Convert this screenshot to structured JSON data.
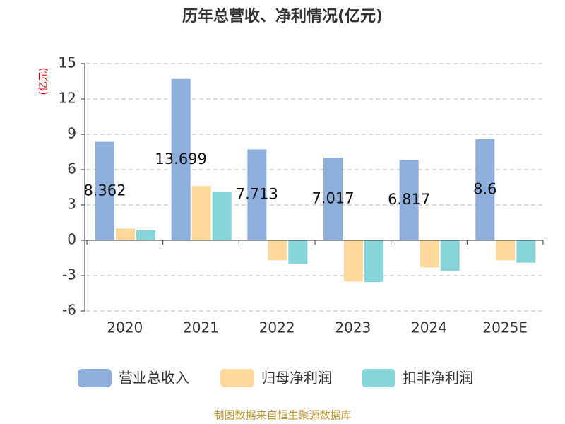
{
  "chart_data": {
    "type": "bar",
    "title": "历年总营收、净利情况(亿元)",
    "y_label": "(亿元)",
    "source": "制图数据来自恒生聚源数据库",
    "categories": [
      "2020",
      "2021",
      "2022",
      "2023",
      "2024",
      "2025E"
    ],
    "series": [
      {
        "name": "营业总收入",
        "color": "#8eaedb",
        "values": [
          8.362,
          13.699,
          7.713,
          7.017,
          6.817,
          8.6
        ],
        "show_labels": true
      },
      {
        "name": "归母净利润",
        "color": "#fdd89a",
        "values": [
          1.0,
          4.6,
          -1.7,
          -3.5,
          -2.3,
          -1.7
        ]
      },
      {
        "name": "扣非净利润",
        "color": "#86d4d8",
        "values": [
          0.85,
          4.1,
          -2.0,
          -3.55,
          -2.6,
          -1.9
        ]
      }
    ],
    "ylim": [
      -6,
      15
    ],
    "yticks": [
      -6,
      -3,
      0,
      3,
      6,
      9,
      12,
      15
    ],
    "grid": true,
    "legend": "bottom"
  }
}
